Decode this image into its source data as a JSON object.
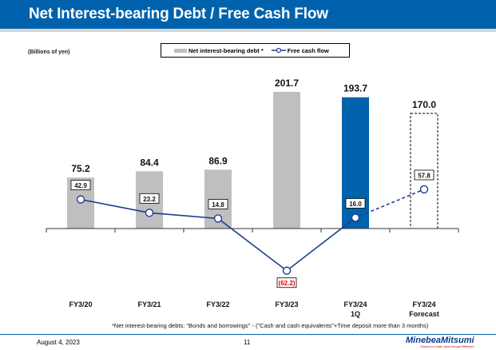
{
  "header": {
    "title": "Net Interest-bearing Debt / Free Cash Flow"
  },
  "units": "(Billions of yen)",
  "legend": {
    "debt": "Net interest-bearing debt *",
    "fcf": "Free cash flow"
  },
  "chart_data": {
    "type": "bar",
    "categories": [
      [
        "FY3/20"
      ],
      [
        "FY3/21"
      ],
      [
        "FY3/22"
      ],
      [
        "FY3/23"
      ],
      [
        "FY3/24",
        "1Q"
      ],
      [
        "FY3/24",
        "Forecast"
      ]
    ],
    "series": [
      {
        "name": "Net interest-bearing debt *",
        "type": "bar",
        "values": [
          75.2,
          84.4,
          86.9,
          201.7,
          193.7,
          170.0
        ],
        "labels": [
          "75.2",
          "84.4",
          "86.9",
          "201.7",
          "193.7",
          "170.0"
        ],
        "colors": [
          "#bfbfbf",
          "#bfbfbf",
          "#bfbfbf",
          "#bfbfbf",
          "#0062ac",
          "forecast-dashed"
        ]
      },
      {
        "name": "Free cash flow",
        "type": "line",
        "values": [
          42.9,
          23.2,
          14.8,
          -62.2,
          16.0,
          57.8
        ],
        "labels": [
          "42.9",
          "23.2",
          "14.8",
          "(62.2)",
          "16.0",
          "57.8"
        ],
        "color": "#1f3f8f",
        "negative_label_color": "#e00000"
      }
    ],
    "forecast_dashed": true,
    "grid": false,
    "legend": "top-center"
  },
  "footnote": "*Net interest-bearing debts: \"Bonds and borrowings\" - (\"Cash and cash equivalents\"+Time deposit more than 3 months)",
  "footer": {
    "date": "August 4, 2023",
    "page": "11",
    "logo": "MinebeaMitsumi",
    "tagline": "Passion to Create Value through Difference"
  }
}
